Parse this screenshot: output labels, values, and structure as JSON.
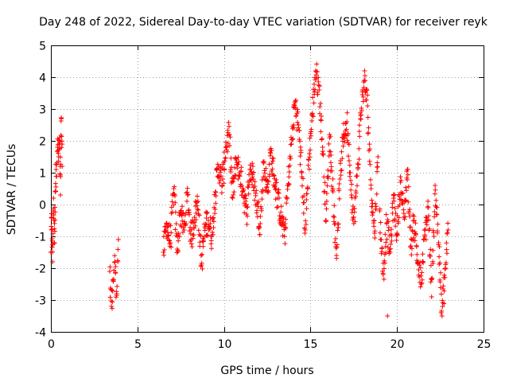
{
  "chart_data": {
    "type": "scatter",
    "title": "Day 248 of 2022, Sidereal Day-to-day VTEC variation (SDTVAR) for receiver reyk",
    "xlabel": "GPS time / hours",
    "ylabel": "SDTVAR / TECUs",
    "xlim": [
      0,
      25
    ],
    "ylim": [
      -4,
      5
    ],
    "xticks": [
      0,
      5,
      10,
      15,
      20,
      25
    ],
    "yticks": [
      -4,
      -3,
      -2,
      -1,
      0,
      1,
      2,
      3,
      4,
      5
    ],
    "grid": true,
    "marker": "+",
    "color": "#ff0000",
    "series": [
      {
        "name": "SDTVAR",
        "segments": [
          {
            "x": [
              0.0,
              0.05,
              0.1,
              0.15,
              0.2,
              0.25,
              0.3,
              0.38,
              0.45,
              0.5,
              0.55,
              0.6,
              0.65
            ],
            "y": [
              -1.5,
              -0.4,
              -1.8,
              0.2,
              -1.2,
              0.4,
              1.1,
              1.8,
              1.5,
              2.1,
              0.3,
              2.7,
              1.2
            ]
          },
          {
            "x": [
              3.4,
              3.5,
              3.6,
              3.7,
              3.8,
              3.9
            ],
            "y": [
              -2.1,
              -3.2,
              -2.4,
              -1.8,
              -2.8,
              -1.1
            ]
          },
          {
            "x": [
              6.5,
              6.7,
              6.9,
              7.1,
              7.3,
              7.5,
              7.7,
              7.9,
              8.1,
              8.3,
              8.5,
              8.7,
              8.9,
              9.1,
              9.3,
              9.5,
              9.7,
              9.9,
              10.1,
              10.3,
              10.5,
              10.7,
              10.9,
              11.1,
              11.3,
              11.5,
              11.7,
              11.9,
              12.1,
              12.3,
              12.5,
              12.7,
              12.9,
              13.1,
              13.3,
              13.5,
              13.7,
              13.9,
              14.1,
              14.3,
              14.5,
              14.7,
              14.9,
              15.1,
              15.3,
              15.5,
              15.7,
              15.9,
              16.1,
              16.3,
              16.5,
              16.7,
              16.9,
              17.1,
              17.3,
              17.5,
              17.7,
              17.9,
              18.1,
              18.3,
              18.5,
              18.7,
              18.9
            ],
            "y": [
              -1.5,
              -0.6,
              -1.2,
              0.5,
              -1.4,
              -0.2,
              -0.8,
              0.3,
              -1.1,
              -0.4,
              0.1,
              -1.9,
              -0.7,
              -0.5,
              -1.0,
              0.4,
              1.2,
              0.6,
              1.8,
              2.2,
              0.2,
              1.4,
              1.0,
              0.5,
              -0.3,
              1.1,
              0.8,
              0.0,
              -0.6,
              1.3,
              0.4,
              1.6,
              0.9,
              0.2,
              -0.4,
              -1.0,
              0.6,
              1.9,
              3.2,
              2.5,
              1.0,
              -0.8,
              1.4,
              2.8,
              4.2,
              3.6,
              1.8,
              -0.5,
              2.2,
              0.4,
              -1.6,
              0.8,
              2.1,
              2.6,
              1.0,
              -0.6,
              0.9,
              2.8,
              3.9,
              3.1,
              0.5,
              -0.9,
              1.5
            ]
          },
          {
            "x": [
              19.0,
              19.2,
              19.4,
              19.6,
              19.8,
              20.0,
              20.2,
              20.4,
              20.6,
              20.8,
              21.0,
              21.2,
              21.4,
              21.6,
              21.8,
              22.0,
              22.2,
              22.4,
              22.6,
              22.8,
              22.95
            ],
            "y": [
              -0.2,
              -2.2,
              -0.6,
              -1.5,
              0.2,
              -0.9,
              0.7,
              -0.4,
              1.1,
              -1.3,
              -0.5,
              -1.8,
              -2.5,
              -1.0,
              -0.1,
              -2.9,
              0.6,
              -1.2,
              -3.5,
              -2.0,
              -0.8
            ]
          },
          {
            "x": [
              19.45
            ],
            "y": [
              -3.5
            ]
          }
        ]
      }
    ]
  }
}
